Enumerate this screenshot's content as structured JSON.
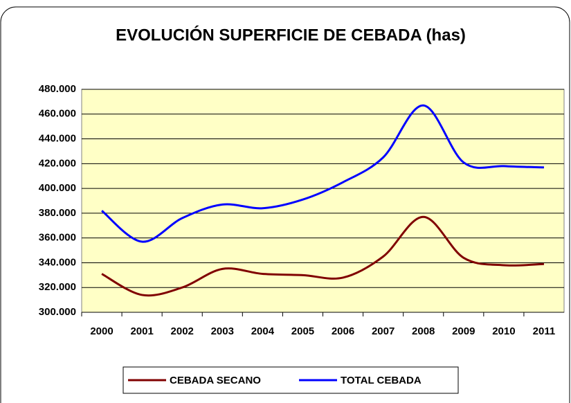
{
  "chart_data": {
    "type": "line",
    "title": "EVOLUCIÓN SUPERFICIE DE CEBADA (has)",
    "categories": [
      "2000",
      "2001",
      "2002",
      "2003",
      "2004",
      "2005",
      "2006",
      "2007",
      "2008",
      "2009",
      "2010",
      "2011"
    ],
    "series": [
      {
        "name": "CEBADA SECANO",
        "color": "#800000",
        "values": [
          331000,
          314000,
          320000,
          335000,
          331000,
          330000,
          328000,
          345000,
          377000,
          344000,
          338000,
          339000
        ]
      },
      {
        "name": "TOTAL CEBADA",
        "color": "#0000ff",
        "values": [
          382000,
          357000,
          376000,
          387000,
          384000,
          391000,
          405000,
          425000,
          467000,
          421000,
          418000,
          417000
        ]
      }
    ],
    "ylim": [
      300000,
      480000
    ],
    "yticks": [
      {
        "value": 300000,
        "label": "300.000"
      },
      {
        "value": 320000,
        "label": "320.000"
      },
      {
        "value": 340000,
        "label": "340.000"
      },
      {
        "value": 360000,
        "label": "360.000"
      },
      {
        "value": 380000,
        "label": "380.000"
      },
      {
        "value": 400000,
        "label": "400.000"
      },
      {
        "value": 420000,
        "label": "420.000"
      },
      {
        "value": 440000,
        "label": "440.000"
      },
      {
        "value": 460000,
        "label": "460.000"
      },
      {
        "value": 480000,
        "label": "480.000"
      }
    ],
    "grid": true,
    "legend": "bottom"
  }
}
